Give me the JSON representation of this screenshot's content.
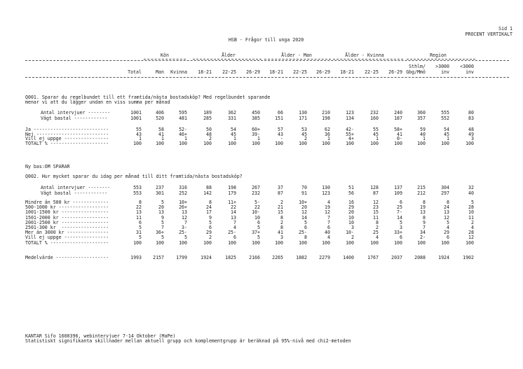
{
  "page": {
    "side": "Sid 1",
    "mode": "PROCENT VERTIKALT"
  },
  "title": "HSB - Frågor till unga 2020",
  "groups": [
    "Kön",
    "Ålder",
    "Ålder - Man",
    "Ålder - Kvinna",
    "Region"
  ],
  "columns": [
    [
      "Total"
    ],
    [
      "Man"
    ],
    [
      "Kvinna"
    ],
    [
      "18-21"
    ],
    [
      "22-25"
    ],
    [
      "26-29"
    ],
    [
      "18-21"
    ],
    [
      "22-25"
    ],
    [
      "26-29"
    ],
    [
      "18-21"
    ],
    [
      "22-25"
    ],
    [
      "26-29"
    ],
    [
      "Sthlm/",
      "Gbg/Mmö"
    ],
    [
      ">3000",
      "inv"
    ],
    [
      "<3000",
      "inv"
    ]
  ],
  "q1": {
    "title_line1": "Q001. Sparar du regelbundet till ett framtida/nästa bostadsköp? Med regelbundet sparande",
    "title_line2": "menar vi att du lägger undan en viss summa per månad",
    "base_rows": [
      {
        "label": "Antal intervjuer --------",
        "values": [
          "1001",
          "406",
          "595",
          "189",
          "362",
          "450",
          "66",
          "130",
          "210",
          "123",
          "232",
          "240",
          "360",
          "555",
          "80"
        ]
      },
      {
        "label": "Vägt bastal ------------",
        "values": [
          "1001",
          "520",
          "481",
          "285",
          "331",
          "385",
          "151",
          "171",
          "198",
          "134",
          "160",
          "187",
          "357",
          "552",
          "83"
        ]
      }
    ],
    "rows": [
      {
        "label": "Ja ---------------------------",
        "values": [
          "55",
          "58",
          "52-",
          "50",
          "54",
          "60+",
          "57",
          "53",
          "62",
          "42-",
          "55",
          "58+",
          "59",
          "54",
          "48"
        ]
      },
      {
        "label": "Nej --------------------------",
        "values": [
          "43",
          "41",
          "46+",
          "48",
          "45",
          "39-",
          "43",
          "45",
          "36",
          "55+",
          "45",
          "41",
          "40",
          "45",
          "49"
        ]
      },
      {
        "label": "Vill ej uppge ----------------",
        "values": [
          "1",
          "1",
          "1",
          "2",
          "1",
          "1",
          "-",
          "2",
          "1",
          "4+",
          "1",
          "0-",
          "1",
          "1",
          "3"
        ]
      },
      {
        "label": "TOTALT % ---------------------",
        "values": [
          "100",
          "100",
          "100",
          "100",
          "100",
          "100",
          "100",
          "100",
          "100",
          "100",
          "100",
          "100",
          "100",
          "100",
          "100"
        ]
      }
    ]
  },
  "newbase": "Ny bas:OM SPARAR",
  "q2": {
    "title_line1": "Q002. Hur mycket sparar du idag per månad till ditt framtida/nästa bostadsköp?",
    "base_rows": [
      {
        "label": "Antal intervjuer --------",
        "values": [
          "553",
          "237",
          "316",
          "88",
          "198",
          "267",
          "37",
          "70",
          "130",
          "51",
          "128",
          "137",
          "215",
          "304",
          "32"
        ]
      },
      {
        "label": "Vägt bastal ------------",
        "values": [
          "553",
          "301",
          "252",
          "142",
          "179",
          "232",
          "87",
          "91",
          "123",
          "56",
          "87",
          "109",
          "212",
          "297",
          "40"
        ]
      }
    ],
    "rows": [
      {
        "label": "Mindre än 500 kr -------------",
        "values": [
          "8",
          "5",
          "10+",
          "8",
          "11+",
          "5-",
          "2",
          "10+",
          "4",
          "16",
          "12",
          "6",
          "8",
          "8",
          "5"
        ]
      },
      {
        "label": "500-1000 kr ------------------",
        "values": [
          "22",
          "20",
          "26+",
          "24",
          "22",
          "22",
          "21",
          "20",
          "19",
          "29",
          "23",
          "25",
          "19",
          "24",
          "28"
        ]
      },
      {
        "label": "1001-1500 kr -----------------",
        "values": [
          "13",
          "13",
          "13",
          "17",
          "14",
          "10-",
          "15",
          "12",
          "12",
          "20",
          "15",
          "7-",
          "13",
          "13",
          "10"
        ]
      },
      {
        "label": "1501-2000 kr -----------------",
        "values": [
          "11",
          "9",
          "12",
          "9",
          "13",
          "10",
          "8",
          "14",
          "7",
          "10",
          "11",
          "14",
          "8",
          "12",
          "11"
        ]
      },
      {
        "label": "2001-2500 kr -----------------",
        "values": [
          "6",
          "5",
          "7",
          "5",
          "7",
          "6",
          "2",
          "5",
          "7",
          "10",
          "8",
          "5",
          "9",
          "5",
          "2"
        ]
      },
      {
        "label": "2501-300 kr  -----------------",
        "values": [
          "5",
          "7",
          "3-",
          "6",
          "4",
          "5",
          "8",
          "6",
          "6",
          "3",
          "2",
          "3",
          "7",
          "4",
          "4"
        ]
      },
      {
        "label": "Mer än 3000 kr ---------------",
        "values": [
          "31",
          "36+",
          "25-",
          "29",
          "25-",
          "37+",
          "41",
          "25-",
          "40",
          "10-",
          "25",
          "33+",
          "34",
          "29",
          "28"
        ]
      },
      {
        "label": "Vill ej uppge ----------------",
        "values": [
          "5",
          "5",
          "5",
          "2",
          "6",
          "5",
          "3",
          "8",
          "4",
          "2",
          "4",
          "6",
          "2-",
          "6",
          "12"
        ]
      },
      {
        "label": "TOTALT % ---------------------",
        "values": [
          "100",
          "100",
          "100",
          "100",
          "100",
          "100",
          "100",
          "100",
          "100",
          "100",
          "100",
          "100",
          "100",
          "100",
          "100"
        ]
      }
    ],
    "mean_row": {
      "label": "Medelvärde -------------------",
      "values": [
        "1993",
        "2157",
        "1799",
        "1924",
        "1825",
        "2166",
        "2265",
        "1882",
        "2279",
        "1400",
        "1767",
        "2037",
        "2088",
        "1924",
        "1902"
      ]
    }
  },
  "footer": {
    "line1": "KANTAR Sifo 1600396, webintervjuer 7-14 Oktober (MaPe)",
    "line2": "Statistiskt signifikanta skillnader mellan aktuell grupp och komplementgrupp är beräknad på 95%-nivå med chi2-metoden"
  }
}
